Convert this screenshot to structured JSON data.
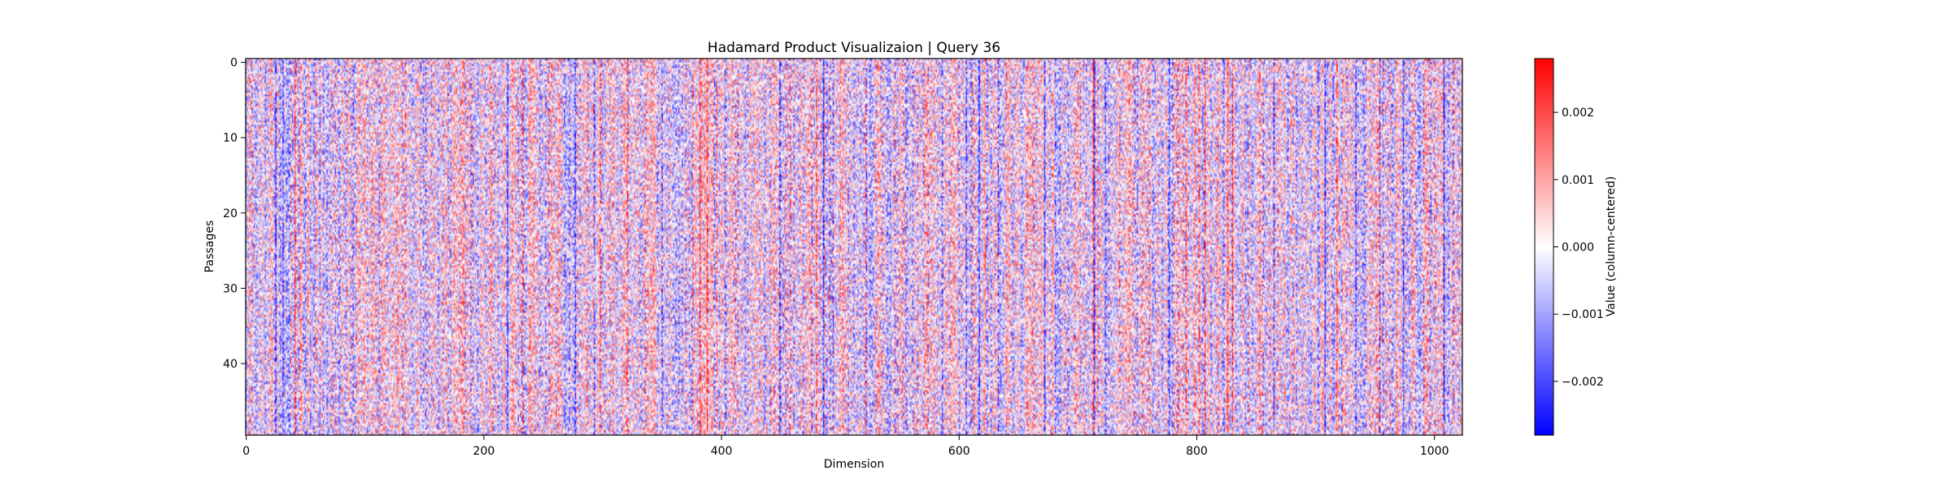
{
  "chart_data": {
    "type": "heatmap",
    "title": "Hadamard Product Visualizaion | Query 36",
    "xlabel": "Dimension",
    "ylabel": "Passages",
    "rows": 50,
    "columns": 1024,
    "xlim": [
      -0.5,
      1023.5
    ],
    "ylim": [
      49.5,
      -0.5
    ],
    "xticks": [
      0,
      200,
      400,
      600,
      800,
      1000
    ],
    "xtick_labels": [
      "0",
      "200",
      "400",
      "600",
      "800",
      "1000"
    ],
    "yticks": [
      0,
      10,
      20,
      30,
      40
    ],
    "ytick_labels": [
      "0",
      "10",
      "20",
      "30",
      "40"
    ],
    "colormap": "bwr",
    "colormap_stops": [
      "#0000ff",
      "#ffffff",
      "#ff0000"
    ],
    "color_range": [
      -0.0028,
      0.0028
    ],
    "colorbar": {
      "label": "Value (column-centered)",
      "ticks": [
        0.002,
        0.001,
        0.0,
        -0.001,
        -0.002
      ],
      "tick_labels": [
        "0.002",
        "0.001",
        "0.000",
        "−0.001",
        "−0.002"
      ]
    },
    "grid": false,
    "values_note": "dense column-centered values, visually noisy with vertical streaks"
  }
}
